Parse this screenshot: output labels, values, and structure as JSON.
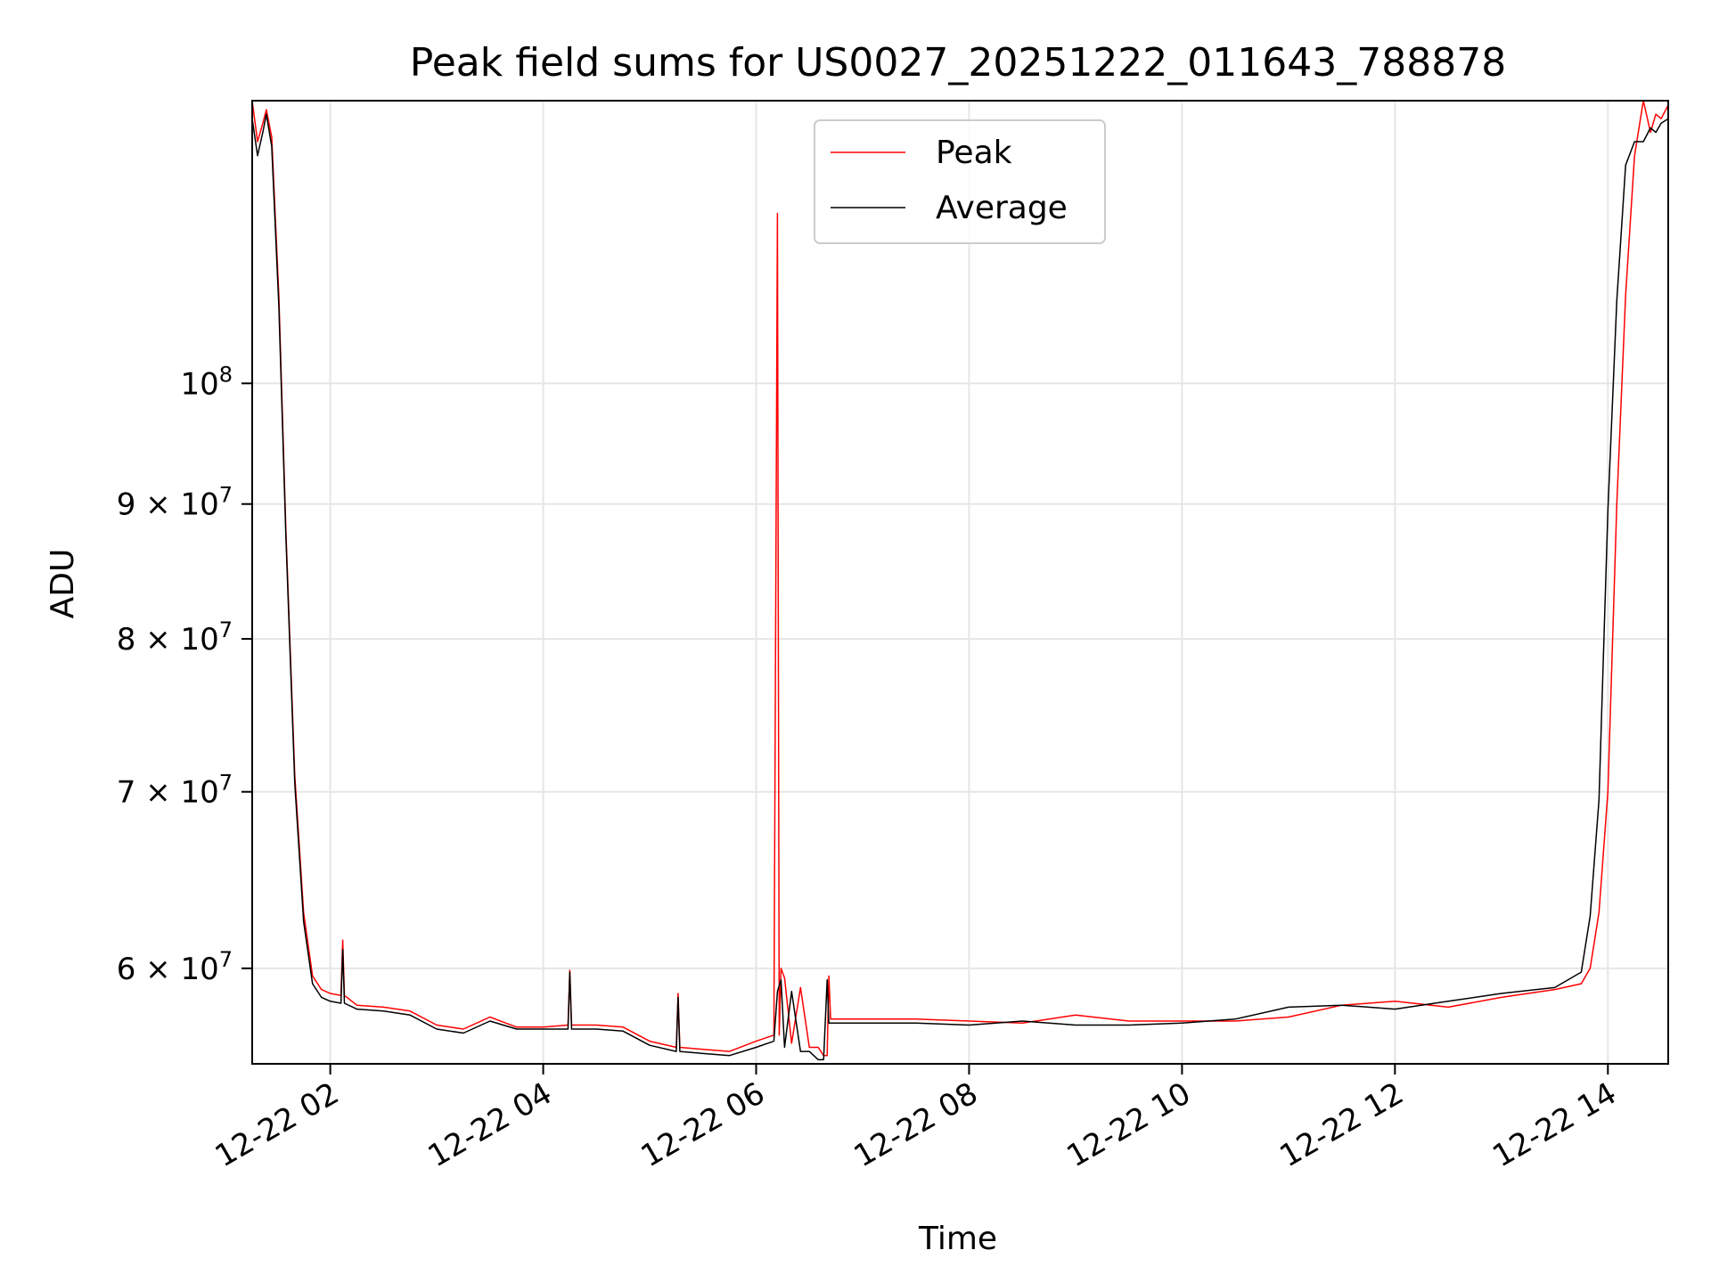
{
  "chart_data": {
    "type": "line",
    "title": "Peak field sums for US0027_20251222_011643_788878",
    "xlabel": "Time",
    "ylabel": "ADU",
    "y_scale": "log",
    "grid": true,
    "legend_placement": "top-center",
    "xlim": [
      "2025-12-22T01:16",
      "2025-12-22T14:34"
    ],
    "ylim": [
      55200000,
      128000000
    ],
    "x_ticks": [
      {
        "value": "2025-12-22T02:00",
        "label": "12-22 02"
      },
      {
        "value": "2025-12-22T04:00",
        "label": "12-22 04"
      },
      {
        "value": "2025-12-22T06:00",
        "label": "12-22 06"
      },
      {
        "value": "2025-12-22T08:00",
        "label": "12-22 08"
      },
      {
        "value": "2025-12-22T10:00",
        "label": "12-22 10"
      },
      {
        "value": "2025-12-22T12:00",
        "label": "12-22 12"
      },
      {
        "value": "2025-12-22T14:00",
        "label": "12-22 14"
      }
    ],
    "y_ticks": [
      {
        "value": 60000000,
        "mantissa": "6",
        "label": "6 × 10^7"
      },
      {
        "value": 70000000,
        "mantissa": "7",
        "label": "7 × 10^7"
      },
      {
        "value": 80000000,
        "mantissa": "8",
        "label": "8 × 10^7"
      },
      {
        "value": 90000000,
        "mantissa": "9",
        "label": "9 × 10^7"
      },
      {
        "value": 100000000,
        "mantissa": "",
        "label": "10^8"
      }
    ],
    "series": [
      {
        "name": "Peak",
        "color": "#ff0000",
        "x": [
          "2025-12-22T01:16",
          "2025-12-22T01:19",
          "2025-12-22T01:22",
          "2025-12-22T01:24",
          "2025-12-22T01:27",
          "2025-12-22T01:31",
          "2025-12-22T01:35",
          "2025-12-22T01:40",
          "2025-12-22T01:45",
          "2025-12-22T01:50",
          "2025-12-22T01:55",
          "2025-12-22T02:00",
          "2025-12-22T02:06",
          "2025-12-22T02:07",
          "2025-12-22T02:08",
          "2025-12-22T02:15",
          "2025-12-22T02:30",
          "2025-12-22T02:45",
          "2025-12-22T03:00",
          "2025-12-22T03:15",
          "2025-12-22T03:30",
          "2025-12-22T03:45",
          "2025-12-22T04:00",
          "2025-12-22T04:14",
          "2025-12-22T04:15",
          "2025-12-22T04:16",
          "2025-12-22T04:30",
          "2025-12-22T04:45",
          "2025-12-22T05:00",
          "2025-12-22T05:15",
          "2025-12-22T05:16",
          "2025-12-22T05:17",
          "2025-12-22T05:30",
          "2025-12-22T05:45",
          "2025-12-22T06:00",
          "2025-12-22T06:10",
          "2025-12-22T06:12",
          "2025-12-22T06:13",
          "2025-12-22T06:14",
          "2025-12-22T06:16",
          "2025-12-22T06:20",
          "2025-12-22T06:25",
          "2025-12-22T06:30",
          "2025-12-22T06:35",
          "2025-12-22T06:38",
          "2025-12-22T06:40",
          "2025-12-22T06:41",
          "2025-12-22T06:42",
          "2025-12-22T07:00",
          "2025-12-22T07:30",
          "2025-12-22T08:00",
          "2025-12-22T08:30",
          "2025-12-22T09:00",
          "2025-12-22T09:30",
          "2025-12-22T10:00",
          "2025-12-22T10:30",
          "2025-12-22T11:00",
          "2025-12-22T11:30",
          "2025-12-22T12:00",
          "2025-12-22T12:30",
          "2025-12-22T13:00",
          "2025-12-22T13:30",
          "2025-12-22T13:45",
          "2025-12-22T13:50",
          "2025-12-22T13:55",
          "2025-12-22T14:00",
          "2025-12-22T14:05",
          "2025-12-22T14:10",
          "2025-12-22T14:15",
          "2025-12-22T14:20",
          "2025-12-22T14:24",
          "2025-12-22T14:27",
          "2025-12-22T14:30",
          "2025-12-22T14:34"
        ],
        "y": [
          128000000,
          123500000,
          125500000,
          127000000,
          124000000,
          108000000,
          88000000,
          71000000,
          63000000,
          59600000,
          58900000,
          58700000,
          58600000,
          61500000,
          58600000,
          58100000,
          58000000,
          57800000,
          57100000,
          56900000,
          57500000,
          57000000,
          57000000,
          57100000,
          59900000,
          57100000,
          57100000,
          57000000,
          56300000,
          56000000,
          58700000,
          56000000,
          55900000,
          55800000,
          56300000,
          56600000,
          116000000,
          56600000,
          60000000,
          59500000,
          56200000,
          59000000,
          56000000,
          56000000,
          55600000,
          55600000,
          59600000,
          57400000,
          57400000,
          57400000,
          57300000,
          57200000,
          57600000,
          57300000,
          57300000,
          57300000,
          57500000,
          58100000,
          58300000,
          58000000,
          58500000,
          58900000,
          59200000,
          60000000,
          63000000,
          70000000,
          90000000,
          108000000,
          122000000,
          128000000,
          124500000,
          126500000,
          126000000,
          127500000
        ]
      },
      {
        "name": "Average",
        "color": "#000000",
        "x": [
          "2025-12-22T01:16",
          "2025-12-22T01:19",
          "2025-12-22T01:22",
          "2025-12-22T01:24",
          "2025-12-22T01:27",
          "2025-12-22T01:31",
          "2025-12-22T01:35",
          "2025-12-22T01:40",
          "2025-12-22T01:45",
          "2025-12-22T01:50",
          "2025-12-22T01:55",
          "2025-12-22T02:00",
          "2025-12-22T02:06",
          "2025-12-22T02:07",
          "2025-12-22T02:08",
          "2025-12-22T02:15",
          "2025-12-22T02:30",
          "2025-12-22T02:45",
          "2025-12-22T03:00",
          "2025-12-22T03:15",
          "2025-12-22T03:30",
          "2025-12-22T03:45",
          "2025-12-22T04:00",
          "2025-12-22T04:14",
          "2025-12-22T04:15",
          "2025-12-22T04:16",
          "2025-12-22T04:30",
          "2025-12-22T04:45",
          "2025-12-22T05:00",
          "2025-12-22T05:15",
          "2025-12-22T05:16",
          "2025-12-22T05:17",
          "2025-12-22T05:30",
          "2025-12-22T05:45",
          "2025-12-22T06:00",
          "2025-12-22T06:10",
          "2025-12-22T06:12",
          "2025-12-22T06:14",
          "2025-12-22T06:16",
          "2025-12-22T06:20",
          "2025-12-22T06:25",
          "2025-12-22T06:30",
          "2025-12-22T06:35",
          "2025-12-22T06:38",
          "2025-12-22T06:40",
          "2025-12-22T06:41",
          "2025-12-22T06:42",
          "2025-12-22T07:00",
          "2025-12-22T07:30",
          "2025-12-22T08:00",
          "2025-12-22T08:30",
          "2025-12-22T09:00",
          "2025-12-22T09:30",
          "2025-12-22T10:00",
          "2025-12-22T10:30",
          "2025-12-22T11:00",
          "2025-12-22T11:30",
          "2025-12-22T12:00",
          "2025-12-22T12:30",
          "2025-12-22T13:00",
          "2025-12-22T13:30",
          "2025-12-22T13:45",
          "2025-12-22T13:50",
          "2025-12-22T13:55",
          "2025-12-22T14:00",
          "2025-12-22T14:05",
          "2025-12-22T14:10",
          "2025-12-22T14:15",
          "2025-12-22T14:20",
          "2025-12-22T14:24",
          "2025-12-22T14:27",
          "2025-12-22T14:30",
          "2025-12-22T14:34"
        ],
        "y": [
          126000000,
          122000000,
          124500000,
          126500000,
          123000000,
          107000000,
          87500000,
          70500000,
          62500000,
          59200000,
          58500000,
          58300000,
          58200000,
          61000000,
          58200000,
          57900000,
          57800000,
          57600000,
          56900000,
          56700000,
          57300000,
          56900000,
          56900000,
          56900000,
          59800000,
          56900000,
          56900000,
          56800000,
          56100000,
          55800000,
          58500000,
          55800000,
          55700000,
          55600000,
          56000000,
          56300000,
          58800000,
          59400000,
          56000000,
          58800000,
          55800000,
          55800000,
          55400000,
          55400000,
          59400000,
          57200000,
          57200000,
          57200000,
          57200000,
          57100000,
          57300000,
          57100000,
          57100000,
          57200000,
          57400000,
          58000000,
          58100000,
          57900000,
          58300000,
          58700000,
          59000000,
          59800000,
          62800000,
          69500000,
          89500000,
          107500000,
          121000000,
          123500000,
          123500000,
          125000000,
          124500000,
          125500000,
          126000000
        ]
      }
    ]
  }
}
